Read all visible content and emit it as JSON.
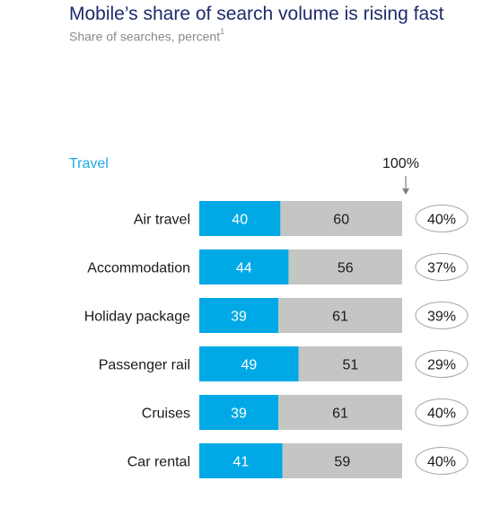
{
  "chart_data": {
    "type": "bar",
    "stacked": true,
    "orientation": "horizontal",
    "title": "Mobile’s share of search volume is rising fast",
    "subtitle": "Share of searches, percent",
    "subtitle_footnote": "1",
    "section_label": "Travel",
    "full_scale_label": "100%",
    "xlim": [
      0,
      100
    ],
    "categories": [
      "Air travel",
      "Accommodation",
      "Holiday package",
      "Passenger rail",
      "Cruises",
      "Car rental"
    ],
    "series": [
      {
        "values": [
          40,
          44,
          39,
          49,
          39,
          41
        ],
        "color": "#00a9e6"
      },
      {
        "values": [
          60,
          56,
          61,
          51,
          61,
          59
        ],
        "color": "#c3c6c3"
      }
    ],
    "annotations": [
      "40%",
      "37%",
      "39%",
      "29%",
      "40%",
      "40%"
    ],
    "colors": {
      "title": "#1f2b6b",
      "section_label": "#1ea9e3",
      "bubble_border": "#a5a5a5",
      "value_text_on_blue": "#ffffff",
      "value_text_on_gray": "#1a1a1a"
    }
  }
}
